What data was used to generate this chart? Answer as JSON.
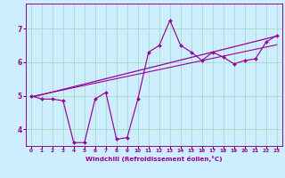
{
  "title": "",
  "xlabel": "Windchill (Refroidissement éolien,°C)",
  "ylabel": "",
  "bg_color": "#cceeff",
  "grid_color": "#aaddcc",
  "line_color": "#990099",
  "xlim": [
    -0.5,
    23.5
  ],
  "ylim": [
    3.5,
    7.75
  ],
  "xticks": [
    0,
    1,
    2,
    3,
    4,
    5,
    6,
    7,
    8,
    9,
    10,
    11,
    12,
    13,
    14,
    15,
    16,
    17,
    18,
    19,
    20,
    21,
    22,
    23
  ],
  "yticks": [
    4,
    5,
    6,
    7
  ],
  "data_x": [
    0,
    1,
    2,
    3,
    4,
    5,
    6,
    7,
    8,
    9,
    10,
    11,
    12,
    13,
    14,
    15,
    16,
    17,
    18,
    19,
    20,
    21,
    22,
    23
  ],
  "data_y": [
    5.0,
    4.9,
    4.9,
    4.85,
    3.6,
    3.6,
    4.9,
    5.1,
    3.7,
    3.75,
    4.9,
    6.3,
    6.5,
    7.25,
    6.5,
    6.3,
    6.05,
    6.3,
    6.15,
    5.95,
    6.05,
    6.1,
    6.6,
    6.8
  ],
  "trend1_x": [
    0,
    23
  ],
  "trend1_y": [
    4.95,
    6.78
  ],
  "trend2_x": [
    0,
    23
  ],
  "trend2_y": [
    4.97,
    6.52
  ]
}
